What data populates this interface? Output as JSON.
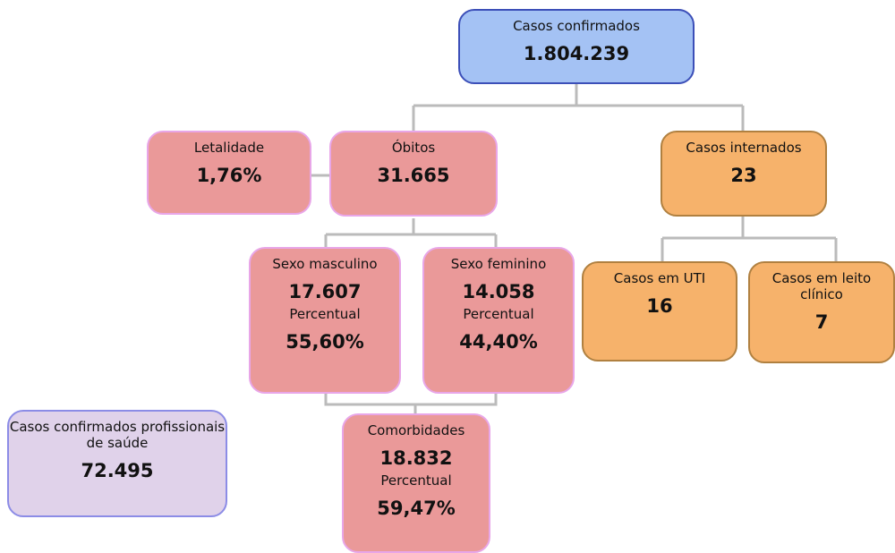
{
  "nodes": [
    {
      "label": "Casos confirmados",
      "value": "1.804.239"
    },
    {
      "label": "Letalidade",
      "value": "1,76%"
    },
    {
      "label": "Óbitos",
      "value": "31.665"
    },
    {
      "label": "Casos internados",
      "value": "23"
    },
    {
      "label": "Sexo masculino",
      "value": "17.607",
      "sublabel": "Percentual",
      "subvalue": "55,60%"
    },
    {
      "label": "Sexo feminino",
      "value": "14.058",
      "sublabel": "Percentual",
      "subvalue": "44,40%"
    },
    {
      "label": "Casos em UTI",
      "value": "16"
    },
    {
      "label": "Casos em leito clínico",
      "value": "7"
    },
    {
      "label": "Casos confirmados profissionais de saúde",
      "value": "72.495"
    },
    {
      "label": "Comorbidades",
      "value": "18.832",
      "sublabel": "Percentual",
      "subvalue": "59,47%"
    }
  ]
}
